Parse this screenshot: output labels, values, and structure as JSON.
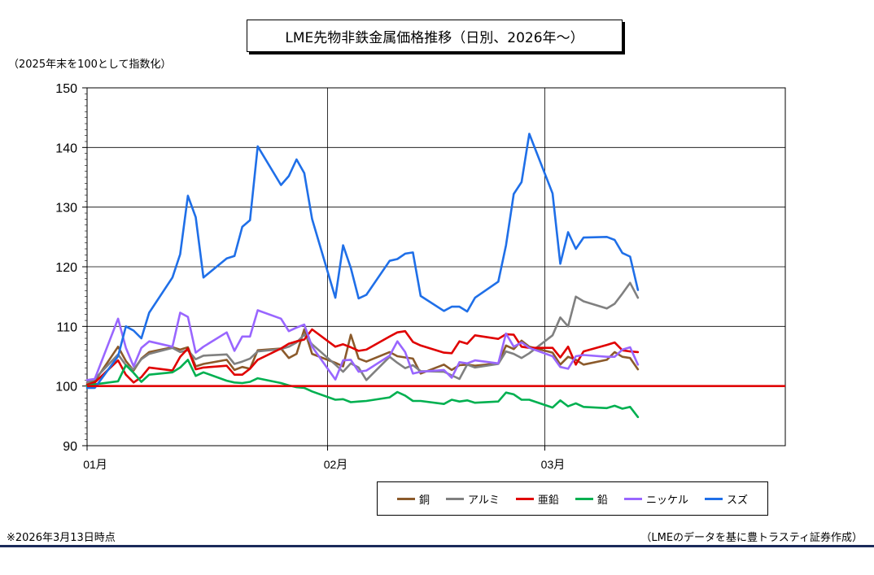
{
  "chart_data": {
    "type": "line",
    "title": "LME先物非鉄金属価格推移（日別、2026年～）",
    "ylabel": "（2025年末を100として指数化）",
    "ylim": [
      90,
      150
    ],
    "yticks": [
      "150",
      "140",
      "130",
      "120",
      "110",
      "100",
      "90"
    ],
    "xticks": [
      {
        "label": "01月",
        "x": "2026-01-01"
      },
      {
        "label": "02月",
        "x": "2026-02-01"
      },
      {
        "label": "03月",
        "x": "2026-03-01"
      }
    ],
    "xlim": [
      "2026-01-01",
      "2026-04-01"
    ],
    "reference_line": 100,
    "legend_position": "bottom",
    "series": [
      {
        "name": "銅",
        "color": "#8B5A2B",
        "x": [
          "2026-01-01",
          "2026-01-02",
          "2026-01-05",
          "2026-01-06",
          "2026-01-07",
          "2026-01-08",
          "2026-01-09",
          "2026-01-12",
          "2026-01-13",
          "2026-01-14",
          "2026-01-15",
          "2026-01-16",
          "2026-01-19",
          "2026-01-20",
          "2026-01-21",
          "2026-01-22",
          "2026-01-23",
          "2026-01-26",
          "2026-01-27",
          "2026-01-28",
          "2026-01-29",
          "2026-01-30",
          "2026-02-02",
          "2026-02-03",
          "2026-02-04",
          "2026-02-05",
          "2026-02-06",
          "2026-02-09",
          "2026-02-10",
          "2026-02-11",
          "2026-02-12",
          "2026-02-13",
          "2026-02-16",
          "2026-02-17",
          "2026-02-18",
          "2026-02-19",
          "2026-02-20",
          "2026-02-23",
          "2026-02-24",
          "2026-02-25",
          "2026-02-26",
          "2026-02-27",
          "2026-03-02",
          "2026-03-03",
          "2026-03-04",
          "2026-03-05",
          "2026-03-06",
          "2026-03-09",
          "2026-03-10",
          "2026-03-11",
          "2026-03-12",
          "2026-03-13"
        ],
        "y": [
          100.3,
          100.8,
          106.6,
          104.2,
          102.6,
          104.6,
          105.7,
          106.5,
          106.1,
          106.5,
          103.3,
          103.7,
          104.4,
          102.7,
          103.2,
          102.9,
          106.0,
          106.3,
          104.7,
          105.4,
          109.5,
          105.4,
          103.9,
          103.3,
          108.6,
          104.6,
          104.1,
          105.7,
          105.0,
          104.8,
          104.6,
          102.1,
          103.6,
          102.7,
          103.5,
          103.6,
          103.4,
          103.8,
          106.8,
          106.2,
          107.6,
          106.6,
          105.6,
          103.6,
          104.9,
          104.4,
          103.6,
          104.4,
          105.7,
          104.9,
          104.7,
          102.8
        ]
      },
      {
        "name": "アルミ",
        "color": "#808080",
        "x": [
          "2026-01-01",
          "2026-01-02",
          "2026-01-05",
          "2026-01-06",
          "2026-01-07",
          "2026-01-08",
          "2026-01-09",
          "2026-01-12",
          "2026-01-13",
          "2026-01-14",
          "2026-01-15",
          "2026-01-16",
          "2026-01-19",
          "2026-01-20",
          "2026-01-21",
          "2026-01-22",
          "2026-01-23",
          "2026-01-26",
          "2026-01-27",
          "2026-01-28",
          "2026-01-29",
          "2026-01-30",
          "2026-02-02",
          "2026-02-03",
          "2026-02-04",
          "2026-02-05",
          "2026-02-06",
          "2026-02-09",
          "2026-02-10",
          "2026-02-11",
          "2026-02-12",
          "2026-02-13",
          "2026-02-16",
          "2026-02-17",
          "2026-02-18",
          "2026-02-19",
          "2026-02-20",
          "2026-02-23",
          "2026-02-24",
          "2026-02-25",
          "2026-02-26",
          "2026-02-27",
          "2026-03-02",
          "2026-03-03",
          "2026-03-04",
          "2026-03-05",
          "2026-03-06",
          "2026-03-09",
          "2026-03-10",
          "2026-03-11",
          "2026-03-12",
          "2026-03-13"
        ],
        "y": [
          100.6,
          101.2,
          105.3,
          103.5,
          102.8,
          104.5,
          105.4,
          106.4,
          105.7,
          106.0,
          104.5,
          105.1,
          105.3,
          103.7,
          104.1,
          104.6,
          105.8,
          106.2,
          106.6,
          107.3,
          108.6,
          107.0,
          103.6,
          102.4,
          103.8,
          103.1,
          101.0,
          104.9,
          103.9,
          103.0,
          103.5,
          102.5,
          102.4,
          101.8,
          101.2,
          103.6,
          103.1,
          103.7,
          105.8,
          105.4,
          104.7,
          105.5,
          108.5,
          111.5,
          110.0,
          115.0,
          114.2,
          113.0,
          113.8,
          115.5,
          117.3,
          114.8
        ]
      },
      {
        "name": "亜鉛",
        "color": "#E00000",
        "x": [
          "2026-01-01",
          "2026-01-02",
          "2026-01-05",
          "2026-01-06",
          "2026-01-07",
          "2026-01-08",
          "2026-01-09",
          "2026-01-12",
          "2026-01-13",
          "2026-01-14",
          "2026-01-15",
          "2026-01-16",
          "2026-01-19",
          "2026-01-20",
          "2026-01-21",
          "2026-01-22",
          "2026-01-23",
          "2026-01-26",
          "2026-01-27",
          "2026-01-28",
          "2026-01-29",
          "2026-01-30",
          "2026-02-02",
          "2026-02-03",
          "2026-02-04",
          "2026-02-05",
          "2026-02-06",
          "2026-02-09",
          "2026-02-10",
          "2026-02-11",
          "2026-02-12",
          "2026-02-13",
          "2026-02-16",
          "2026-02-17",
          "2026-02-18",
          "2026-02-19",
          "2026-02-20",
          "2026-02-23",
          "2026-02-24",
          "2026-02-25",
          "2026-02-26",
          "2026-02-27",
          "2026-03-02",
          "2026-03-03",
          "2026-03-04",
          "2026-03-05",
          "2026-03-06",
          "2026-03-09",
          "2026-03-10",
          "2026-03-11",
          "2026-03-12",
          "2026-03-13"
        ],
        "y": [
          100.2,
          100.6,
          104.3,
          101.9,
          100.6,
          101.5,
          103.1,
          102.6,
          104.9,
          106.3,
          102.8,
          103.1,
          103.4,
          101.9,
          101.9,
          102.9,
          104.4,
          106.3,
          107.1,
          107.5,
          107.8,
          109.5,
          106.6,
          107.0,
          106.5,
          105.9,
          106.1,
          108.3,
          109.0,
          109.2,
          107.4,
          106.8,
          105.6,
          105.5,
          107.5,
          107.1,
          108.5,
          107.9,
          108.7,
          108.6,
          106.6,
          106.4,
          106.4,
          104.8,
          106.6,
          103.6,
          105.8,
          106.9,
          107.3,
          106.0,
          105.8,
          105.7
        ]
      },
      {
        "name": "鉛",
        "color": "#00B050",
        "x": [
          "2026-01-01",
          "2026-01-02",
          "2026-01-05",
          "2026-01-06",
          "2026-01-07",
          "2026-01-08",
          "2026-01-09",
          "2026-01-12",
          "2026-01-13",
          "2026-01-14",
          "2026-01-15",
          "2026-01-16",
          "2026-01-19",
          "2026-01-20",
          "2026-01-21",
          "2026-01-22",
          "2026-01-23",
          "2026-01-26",
          "2026-01-27",
          "2026-01-28",
          "2026-01-29",
          "2026-01-30",
          "2026-02-02",
          "2026-02-03",
          "2026-02-04",
          "2026-02-05",
          "2026-02-06",
          "2026-02-09",
          "2026-02-10",
          "2026-02-11",
          "2026-02-12",
          "2026-02-13",
          "2026-02-16",
          "2026-02-17",
          "2026-02-18",
          "2026-02-19",
          "2026-02-20",
          "2026-02-23",
          "2026-02-24",
          "2026-02-25",
          "2026-02-26",
          "2026-02-27",
          "2026-03-02",
          "2026-03-03",
          "2026-03-04",
          "2026-03-05",
          "2026-03-06",
          "2026-03-09",
          "2026-03-10",
          "2026-03-11",
          "2026-03-12",
          "2026-03-13"
        ],
        "y": [
          100.0,
          100.3,
          100.8,
          103.5,
          102.2,
          100.7,
          101.9,
          102.3,
          103.1,
          104.4,
          101.7,
          102.3,
          100.9,
          100.6,
          100.5,
          100.7,
          101.3,
          100.5,
          100.1,
          99.8,
          99.7,
          99.1,
          97.7,
          97.8,
          97.3,
          97.4,
          97.5,
          98.1,
          99.0,
          98.4,
          97.5,
          97.5,
          97.0,
          97.7,
          97.4,
          97.6,
          97.2,
          97.4,
          98.9,
          98.6,
          97.7,
          97.7,
          96.4,
          97.6,
          96.6,
          97.1,
          96.5,
          96.3,
          96.7,
          96.2,
          96.5,
          94.8
        ]
      },
      {
        "name": "ニッケル",
        "color": "#9966FF",
        "x": [
          "2026-01-01",
          "2026-01-02",
          "2026-01-05",
          "2026-01-06",
          "2026-01-07",
          "2026-01-08",
          "2026-01-09",
          "2026-01-12",
          "2026-01-13",
          "2026-01-14",
          "2026-01-15",
          "2026-01-16",
          "2026-01-19",
          "2026-01-20",
          "2026-01-21",
          "2026-01-22",
          "2026-01-23",
          "2026-01-26",
          "2026-01-27",
          "2026-01-28",
          "2026-01-29",
          "2026-01-30",
          "2026-02-02",
          "2026-02-03",
          "2026-02-04",
          "2026-02-05",
          "2026-02-06",
          "2026-02-09",
          "2026-02-10",
          "2026-02-11",
          "2026-02-12",
          "2026-02-13",
          "2026-02-16",
          "2026-02-17",
          "2026-02-18",
          "2026-02-19",
          "2026-02-20",
          "2026-02-23",
          "2026-02-24",
          "2026-02-25",
          "2026-02-26",
          "2026-02-27",
          "2026-03-02",
          "2026-03-03",
          "2026-03-04",
          "2026-03-05",
          "2026-03-06",
          "2026-03-09",
          "2026-03-10",
          "2026-03-11",
          "2026-03-12",
          "2026-03-13"
        ],
        "y": [
          101.0,
          101.2,
          111.3,
          106.4,
          103.3,
          106.4,
          107.5,
          106.6,
          112.3,
          111.6,
          105.6,
          106.6,
          109.0,
          105.9,
          108.3,
          108.3,
          112.7,
          111.3,
          109.2,
          109.8,
          110.3,
          106.6,
          101.1,
          104.3,
          104.4,
          102.4,
          102.6,
          105.1,
          107.5,
          105.7,
          102.1,
          102.4,
          102.7,
          101.4,
          104.0,
          103.8,
          104.3,
          103.8,
          108.8,
          106.6,
          107.3,
          106.4,
          105.0,
          103.2,
          102.9,
          105.0,
          105.2,
          104.9,
          104.9,
          106.1,
          106.5,
          103.6
        ]
      },
      {
        "name": "スズ",
        "color": "#1F6FE8",
        "x": [
          "2026-01-01",
          "2026-01-02",
          "2026-01-05",
          "2026-01-06",
          "2026-01-07",
          "2026-01-08",
          "2026-01-09",
          "2026-01-12",
          "2026-01-13",
          "2026-01-14",
          "2026-01-15",
          "2026-01-16",
          "2026-01-19",
          "2026-01-20",
          "2026-01-21",
          "2026-01-22",
          "2026-01-23",
          "2026-01-26",
          "2026-01-27",
          "2026-01-28",
          "2026-01-29",
          "2026-01-30",
          "2026-02-02",
          "2026-02-03",
          "2026-02-04",
          "2026-02-05",
          "2026-02-06",
          "2026-02-09",
          "2026-02-10",
          "2026-02-11",
          "2026-02-12",
          "2026-02-13",
          "2026-02-16",
          "2026-02-17",
          "2026-02-18",
          "2026-02-19",
          "2026-02-20",
          "2026-02-23",
          "2026-02-24",
          "2026-02-25",
          "2026-02-26",
          "2026-02-27",
          "2026-03-02",
          "2026-03-03",
          "2026-03-04",
          "2026-03-05",
          "2026-03-06",
          "2026-03-09",
          "2026-03-10",
          "2026-03-11",
          "2026-03-12",
          "2026-03-13"
        ],
        "y": [
          99.7,
          99.7,
          105.0,
          110.0,
          109.3,
          108.0,
          112.3,
          118.2,
          122.1,
          131.9,
          128.3,
          118.2,
          121.4,
          121.8,
          126.7,
          127.8,
          140.2,
          133.7,
          135.2,
          138.0,
          135.7,
          128.0,
          114.8,
          123.6,
          119.8,
          114.7,
          115.3,
          121.0,
          121.3,
          122.2,
          122.4,
          115.1,
          112.6,
          113.3,
          113.3,
          112.5,
          114.8,
          117.5,
          123.6,
          132.2,
          134.2,
          142.3,
          132.3,
          120.5,
          125.8,
          123.0,
          124.9,
          125.0,
          124.5,
          122.3,
          121.7,
          116.1
        ]
      }
    ]
  },
  "notes": {
    "footnote": "※2026年3月13日時点",
    "source": "（LMEのデータを基に豊トラスティ証券作成）"
  }
}
